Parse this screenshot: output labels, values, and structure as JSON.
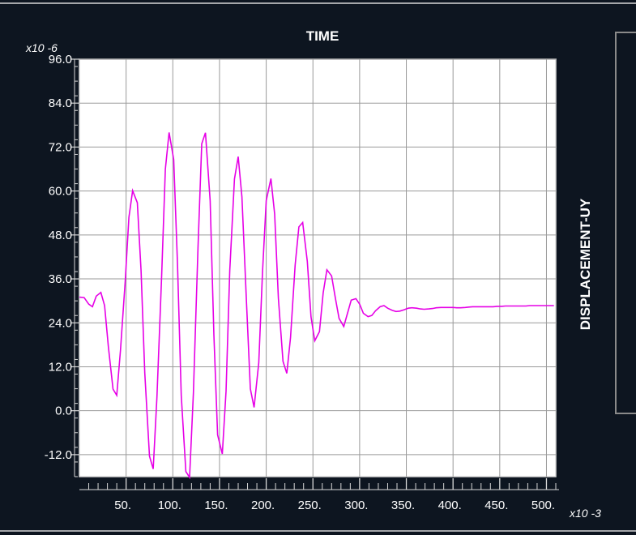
{
  "colors": {
    "background": "#0d1520",
    "plot_background": "#ffffff",
    "grid": "#9a9a9a",
    "series": "#e600e6",
    "text": "#ffffff",
    "frame": "#d8d8d8"
  },
  "chart_data": {
    "type": "line",
    "title": "TIME",
    "xlabel": "",
    "ylabel": "DISPLACEMENT-UY",
    "x_multiplier": "x10 -3",
    "y_multiplier": "x10 -6",
    "xlim": [
      0,
      510
    ],
    "ylim": [
      -18,
      96
    ],
    "x_ticks": [
      50,
      100,
      150,
      200,
      250,
      300,
      350,
      400,
      450,
      500
    ],
    "x_tick_labels": [
      "50.",
      "100.",
      "150.",
      "200.",
      "250.",
      "300.",
      "350.",
      "400.",
      "450.",
      "500."
    ],
    "y_ticks": [
      96,
      84,
      72,
      60,
      48,
      36,
      24,
      12,
      0,
      -12
    ],
    "y_tick_labels": [
      "96.0",
      "84.0",
      "72.0",
      "60.0",
      "48.0",
      "36.0",
      "24.0",
      "12.0",
      "0.0",
      "-12.0"
    ],
    "grid": true,
    "series": [
      {
        "color": "#e600e6",
        "x": [
          0,
          5,
          10,
          14,
          18,
          23,
          27,
          31,
          36,
          40,
          44,
          49,
          53,
          57,
          62,
          66,
          70,
          75,
          79,
          83,
          88,
          92,
          96,
          101,
          105,
          109,
          114,
          118,
          122,
          127,
          131,
          135,
          140,
          144,
          148,
          153,
          157,
          161,
          166,
          170,
          174,
          179,
          183,
          187,
          192,
          196,
          200,
          205,
          209,
          213,
          218,
          222,
          226,
          231,
          235,
          239,
          244,
          248,
          252,
          257,
          261,
          265,
          270,
          274,
          278,
          283,
          287,
          291,
          296,
          300,
          304,
          309,
          313,
          317,
          322,
          326,
          330,
          335,
          339,
          343,
          348,
          352,
          356,
          361,
          365,
          369,
          374,
          378,
          382,
          387,
          391,
          395,
          400,
          404,
          408,
          413,
          417,
          421,
          426,
          430,
          434,
          439,
          443,
          447,
          452,
          456,
          460,
          465,
          469,
          473,
          478,
          482,
          486,
          491,
          495,
          499,
          504,
          508
        ],
        "y": [
          31.0,
          30.9,
          29.1,
          28.4,
          31.3,
          32.3,
          28.7,
          17.6,
          5.9,
          4.2,
          16.5,
          35.2,
          52.8,
          60.1,
          56.8,
          38.3,
          10.3,
          -12.4,
          -15.9,
          3.7,
          36.7,
          66.0,
          76.0,
          68.6,
          39.9,
          4.2,
          -16.6,
          -18.2,
          4.8,
          44.6,
          72.9,
          75.9,
          57.3,
          20.7,
          -6.6,
          -11.8,
          5.3,
          38.3,
          63.3,
          69.4,
          58.4,
          28.8,
          6.0,
          0.9,
          13.1,
          37.8,
          57.4,
          63.4,
          53.7,
          30.7,
          13.5,
          10.2,
          20.0,
          39.8,
          50.2,
          51.4,
          40.8,
          25.6,
          19.1,
          21.6,
          32.2,
          38.5,
          36.8,
          30.8,
          25.2,
          23.0,
          26.6,
          30.2,
          30.6,
          29.1,
          26.6,
          25.7,
          26.0,
          27.3,
          28.4,
          28.7,
          28.0,
          27.4,
          27.1,
          27.2,
          27.6,
          28.0,
          28.1,
          28.0,
          27.8,
          27.7,
          27.8,
          27.9,
          28.1,
          28.2,
          28.2,
          28.2,
          28.2,
          28.1,
          28.1,
          28.2,
          28.3,
          28.4,
          28.4,
          28.4,
          28.4,
          28.4,
          28.4,
          28.5,
          28.5,
          28.6,
          28.6,
          28.6,
          28.6,
          28.6,
          28.6,
          28.7,
          28.7,
          28.7,
          28.7,
          28.7,
          28.7,
          28.7
        ]
      }
    ]
  }
}
